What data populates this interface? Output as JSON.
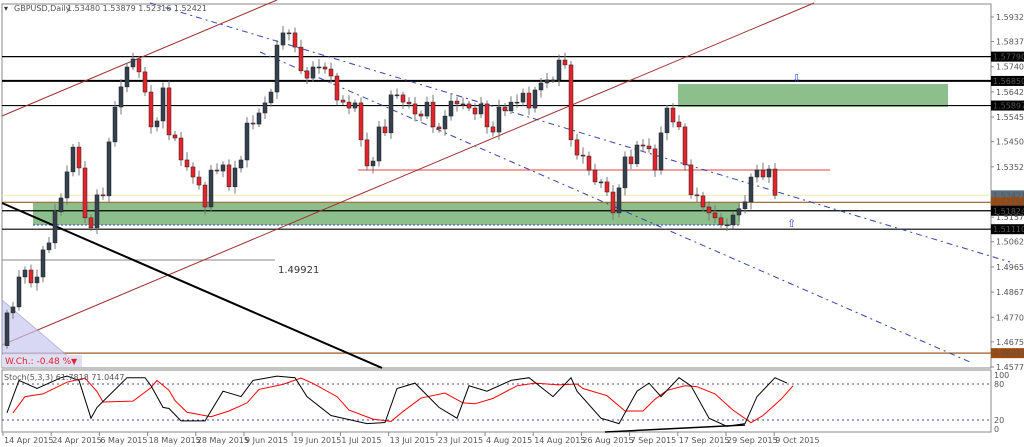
{
  "header": {
    "symbol_label": "GBPUSD,Daily",
    "ohlc": "1.53480 1.53879 1.52316 1.52421"
  },
  "colors": {
    "bull": "#34404e",
    "bear": "#e8222b",
    "zone": "#7fb87f",
    "stoch_k": "#000000",
    "stoch_d": "#ff0000"
  },
  "price_axis": {
    "ticks": [
      "1.59325",
      "1.58375",
      "1.57400",
      "1.56425",
      "1.55450",
      "1.54500",
      "1.53525",
      "1.51575",
      "1.50625",
      "1.49650",
      "1.48675",
      "1.47700",
      "1.46750",
      "1.45775"
    ],
    "levels": [
      {
        "value": "1.57790",
        "style": "black"
      },
      {
        "value": "1.56850",
        "style": "black"
      },
      {
        "value": "1.55897",
        "style": "black"
      },
      {
        "value": "1.52421",
        "style": "current"
      },
      {
        "value": "1.52150",
        "style": "brown"
      },
      {
        "value": "1.51824",
        "style": "black"
      },
      {
        "value": "1.51110",
        "style": "black"
      },
      {
        "value": "1.46311",
        "style": "brown"
      }
    ]
  },
  "annotations": {
    "level_text": "1.49921",
    "weekly_change": "W.Ch.: -0.48 %"
  },
  "chart_data": {
    "type": "candlestick",
    "first_open": 1.466,
    "closes": [
      1.4787,
      1.481,
      1.4926,
      1.4953,
      1.4903,
      1.4926,
      1.5031,
      1.5058,
      1.5178,
      1.5232,
      1.5333,
      1.5429,
      1.5348,
      1.5155,
      1.5116,
      1.5244,
      1.524,
      1.5449,
      1.5584,
      1.5662,
      1.5739,
      1.577,
      1.572,
      1.5642,
      1.5507,
      1.553,
      1.5658,
      1.5476,
      1.5464,
      1.5379,
      1.5352,
      1.5313,
      1.5282,
      1.5197,
      1.534,
      1.5336,
      1.536,
      1.5275,
      1.5348,
      1.5379,
      1.5522,
      1.5518,
      1.5561,
      1.56,
      1.5642,
      1.5824,
      1.5871,
      1.5871,
      1.5816,
      1.5724,
      1.5696,
      1.5739,
      1.5739,
      1.5731,
      1.5704,
      1.5611,
      1.5603,
      1.558,
      1.56,
      1.5457,
      1.5356,
      1.5375,
      1.5507,
      1.5484,
      1.5631,
      1.5631,
      1.5603,
      1.5596,
      1.5557,
      1.5549,
      1.5603,
      1.5507,
      1.5499,
      1.5549,
      1.5607,
      1.5596,
      1.5596,
      1.558,
      1.5557,
      1.5596,
      1.5507,
      1.5487,
      1.5584,
      1.5569,
      1.5603,
      1.5603,
      1.5638,
      1.558,
      1.565,
      1.5677,
      1.5689,
      1.5689,
      1.5766,
      1.5747,
      1.5457,
      1.5398,
      1.5394,
      1.534,
      1.5294,
      1.5294,
      1.5255,
      1.5174,
      1.5271,
      1.5391,
      1.5364,
      1.5437,
      1.5433,
      1.5422,
      1.534,
      1.5484,
      1.558,
      1.5526,
      1.5507,
      1.536,
      1.5244,
      1.524,
      1.5197,
      1.5174,
      1.5155,
      1.5128,
      1.5128,
      1.5166,
      1.519,
      1.5217,
      1.5313,
      1.534,
      1.5313,
      1.5344,
      1.5242
    ],
    "ylim": [
      1.45775,
      1.59325
    ],
    "x_tick_labels": [
      "14 Apr 2015",
      "24 Apr 2015",
      "6 May 2015",
      "18 May 2015",
      "28 May 2015",
      "9 Jun 2015",
      "19 Jun 2015",
      "1 Jul 2015",
      "13 Jul 2015",
      "23 Jul 2015",
      "4 Aug 2015",
      "14 Aug 2015",
      "26 Aug 2015",
      "7 Sep 2015",
      "17 Sep 2015",
      "29 Sep 2015",
      "9 Oct 2015"
    ],
    "stochastic": {
      "label": "Stoch(5,3,3) 61.7818 71.0447",
      "levels": [
        "100",
        "80",
        "20",
        "0"
      ],
      "k": [
        [
          0,
          30
        ],
        [
          2,
          90
        ],
        [
          5,
          75
        ],
        [
          9,
          95
        ],
        [
          10,
          98
        ],
        [
          12,
          90
        ],
        [
          14,
          20
        ],
        [
          15,
          40
        ],
        [
          20,
          95
        ],
        [
          23,
          95
        ],
        [
          24,
          80
        ],
        [
          26,
          40
        ],
        [
          27,
          38
        ],
        [
          29,
          15
        ],
        [
          33,
          15
        ],
        [
          36,
          70
        ],
        [
          39,
          60
        ],
        [
          41,
          90
        ],
        [
          45,
          98
        ],
        [
          48,
          95
        ],
        [
          50,
          60
        ],
        [
          54,
          25
        ],
        [
          56,
          20
        ],
        [
          60,
          10
        ],
        [
          63,
          12
        ],
        [
          65,
          75
        ],
        [
          68,
          85
        ],
        [
          72,
          40
        ],
        [
          75,
          20
        ],
        [
          77,
          80
        ],
        [
          80,
          70
        ],
        [
          84,
          90
        ],
        [
          87,
          95
        ],
        [
          91,
          60
        ],
        [
          94,
          95
        ],
        [
          95,
          70
        ],
        [
          99,
          20
        ],
        [
          102,
          10
        ],
        [
          105,
          70
        ],
        [
          107,
          85
        ],
        [
          109,
          60
        ],
        [
          112,
          95
        ],
        [
          114,
          80
        ],
        [
          117,
          20
        ],
        [
          120,
          5
        ],
        [
          123,
          10
        ],
        [
          125,
          60
        ],
        [
          128,
          95
        ],
        [
          130,
          85
        ]
      ]
    }
  }
}
